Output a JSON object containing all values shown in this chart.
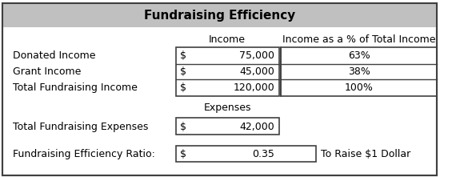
{
  "title": "Fundraising Efficiency",
  "title_bg": "#c0c0c0",
  "border_color": "#404040",
  "font_color": "#000000",
  "col_header_income": "Income",
  "col_header_pct": "Income as a % of Total Income",
  "rows_income": [
    {
      "label": "Donated Income",
      "dollar": "$",
      "value": "75,000",
      "pct": "63%"
    },
    {
      "label": "Grant Income",
      "dollar": "$",
      "value": "45,000",
      "pct": "38%"
    },
    {
      "label": "Total Fundraising Income",
      "dollar": "$",
      "value": "120,000",
      "pct": "100%"
    }
  ],
  "expenses_header": "Expenses",
  "expense_label": "Total Fundraising Expenses",
  "expense_dollar": "$",
  "expense_value": "42,000",
  "ratio_label": "Fundraising Efficiency Ratio:",
  "ratio_dollar": "$",
  "ratio_value": "0.35",
  "ratio_suffix": "To Raise $1 Dollar",
  "figsize": [
    5.65,
    2.21
  ],
  "dpi": 100
}
